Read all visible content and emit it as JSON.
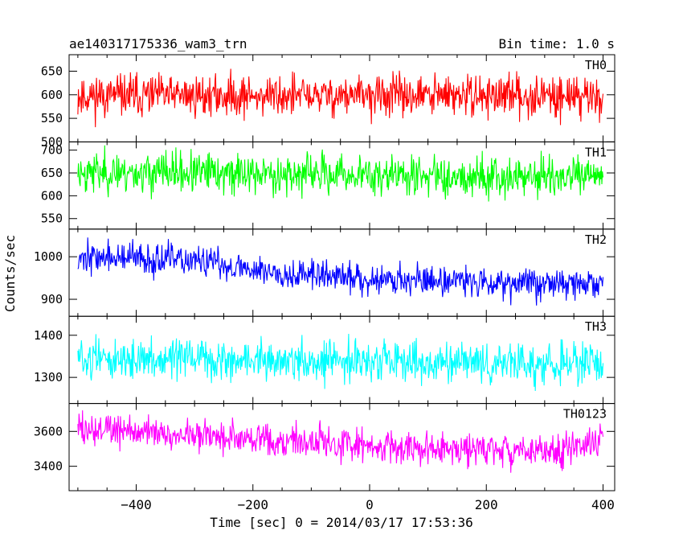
{
  "chart_data": {
    "type": "line",
    "title": "ae140317175336_wam3_trn",
    "subtitle": "Bin time: 1.0 s",
    "xlabel": "Time [sec] 0 = 2014/03/17 17:53:36",
    "ylabel": "Counts/sec",
    "xlim": [
      -515,
      420
    ],
    "x_range": [
      -500,
      400
    ],
    "x_ticks": [
      "−400",
      "−200",
      "0",
      "200",
      "400"
    ],
    "grid": false,
    "legend": "none",
    "panels": [
      {
        "name": "TH0",
        "color": "#ff0000",
        "ylim": [
          500,
          685
        ],
        "yticks": [
          500,
          550,
          600,
          650
        ],
        "trend": [
          [
            -500,
            598
          ],
          [
            400,
            598
          ]
        ],
        "noise": 30,
        "seed": 11
      },
      {
        "name": "TH1",
        "color": "#00ff00",
        "ylim": [
          527,
          718
        ],
        "yticks": [
          550,
          600,
          650,
          700
        ],
        "trend": [
          [
            -500,
            652
          ],
          [
            0,
            646
          ],
          [
            400,
            640
          ]
        ],
        "noise": 30,
        "seed": 23
      },
      {
        "name": "TH2",
        "color": "#0000ff",
        "ylim": [
          860,
          1065
        ],
        "yticks": [
          900,
          1000
        ],
        "trend": [
          [
            -500,
            1000
          ],
          [
            -300,
            990
          ],
          [
            -150,
            962
          ],
          [
            0,
            948
          ],
          [
            200,
            942
          ],
          [
            400,
            935
          ]
        ],
        "noise": 25,
        "seed": 37
      },
      {
        "name": "TH3",
        "color": "#00ffff",
        "ylim": [
          1238,
          1445
        ],
        "yticks": [
          1300,
          1400
        ],
        "trend": [
          [
            -500,
            1345
          ],
          [
            0,
            1336
          ],
          [
            400,
            1330
          ]
        ],
        "noise": 32,
        "seed": 51
      },
      {
        "name": "TH0123",
        "color": "#ff00ff",
        "ylim": [
          3260,
          3760
        ],
        "yticks": [
          3400,
          3600
        ],
        "trend": [
          [
            -500,
            3615
          ],
          [
            -300,
            3580
          ],
          [
            0,
            3520
          ],
          [
            200,
            3490
          ],
          [
            300,
            3480
          ],
          [
            400,
            3550
          ]
        ],
        "noise": 65,
        "seed": 73
      }
    ]
  }
}
